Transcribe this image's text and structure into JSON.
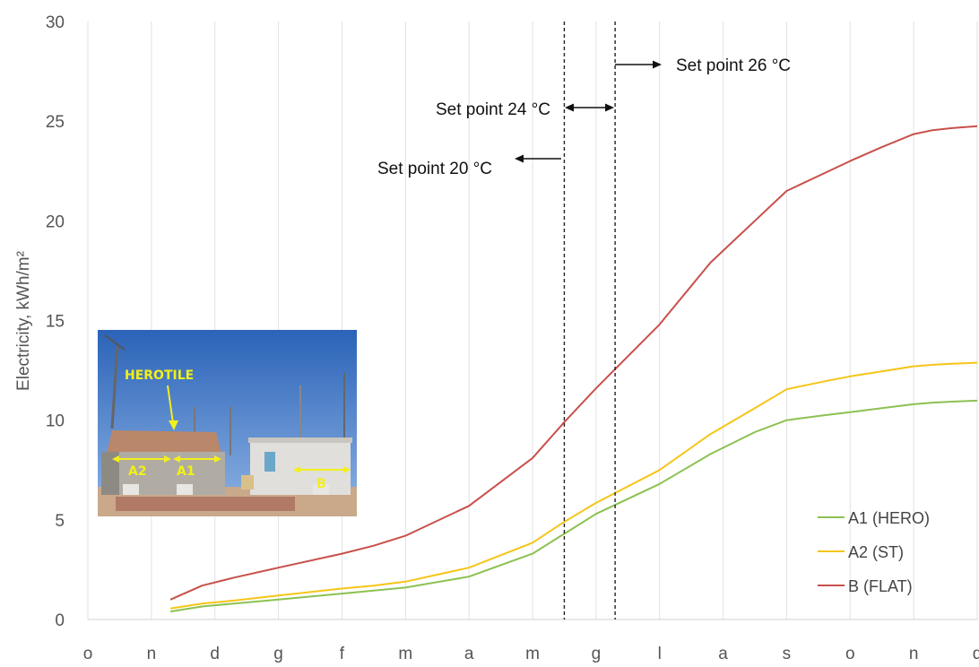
{
  "chart_data": {
    "type": "line",
    "title": "",
    "xlabel": "",
    "ylabel": "Electricity, kWh/m²",
    "ylim": [
      0,
      30
    ],
    "yticks": [
      "0",
      "5",
      "10",
      "15",
      "20",
      "25",
      "30"
    ],
    "categories": [
      "o",
      "n",
      "d",
      "g",
      "f",
      "m",
      "a",
      "m",
      "g",
      "l",
      "a",
      "s",
      "o",
      "n",
      "d"
    ],
    "grid": true,
    "legend_position": "bottom-right",
    "x": [
      1.3,
      1.8,
      2.3,
      3.0,
      4.0,
      4.5,
      5.0,
      6.0,
      7.0,
      7.5,
      8.0,
      9.0,
      9.8,
      10.5,
      11.0,
      11.6,
      12.0,
      12.5,
      13.0,
      13.3,
      13.6,
      14.0
    ],
    "series": [
      {
        "name": "A1 (HERO)",
        "color": "#8cc152",
        "values": [
          0.4,
          0.65,
          0.8,
          1.0,
          1.3,
          1.45,
          1.6,
          2.15,
          3.3,
          4.3,
          5.3,
          6.8,
          8.3,
          9.4,
          10.0,
          10.25,
          10.4,
          10.6,
          10.8,
          10.88,
          10.93,
          10.98
        ]
      },
      {
        "name": "A2 (ST)",
        "color": "#f5c518",
        "values": [
          0.55,
          0.8,
          0.95,
          1.2,
          1.55,
          1.7,
          1.9,
          2.6,
          3.85,
          4.9,
          5.85,
          7.5,
          9.3,
          10.6,
          11.55,
          11.95,
          12.2,
          12.45,
          12.7,
          12.78,
          12.83,
          12.88
        ]
      },
      {
        "name": "B (FLAT)",
        "color": "#c8504b",
        "values": [
          1.0,
          1.7,
          2.1,
          2.6,
          3.3,
          3.7,
          4.2,
          5.7,
          8.1,
          9.9,
          11.6,
          14.8,
          17.9,
          20.0,
          21.5,
          22.4,
          23.0,
          23.7,
          24.35,
          24.55,
          24.65,
          24.75
        ]
      }
    ],
    "reference_lines_x": [
      7.5,
      8.3
    ],
    "annotations": {
      "sp26": "Set point 26 °C",
      "sp24": "Set point 24 °C",
      "sp20": "Set point 20 °C"
    }
  },
  "inset": {
    "caption_main": "HEROTILE",
    "label_a1": "A1",
    "label_a2": "A2",
    "label_b": "B"
  }
}
